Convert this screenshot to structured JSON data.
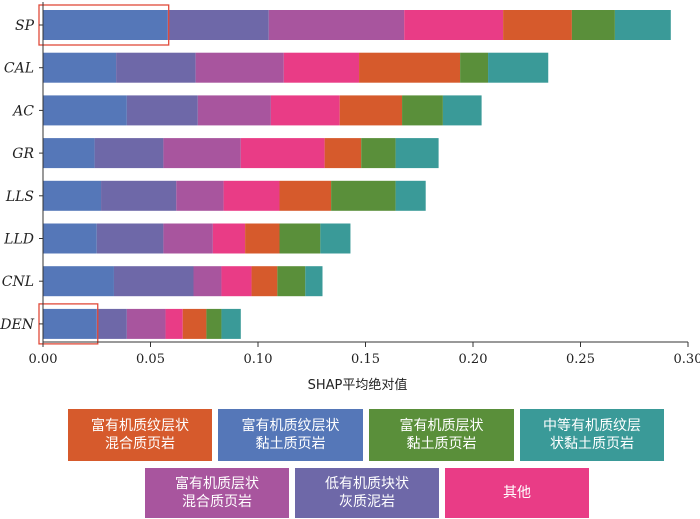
{
  "chart_data": {
    "type": "bar",
    "orientation": "horizontal",
    "stacked": true,
    "categories": [
      "SP",
      "CAL",
      "AC",
      "GR",
      "LLS",
      "LLD",
      "CNL",
      "DEN"
    ],
    "series": [
      {
        "name": "富有机质纹层状\n黏土质页岩",
        "color": "#5577b8",
        "values": [
          0.058,
          0.034,
          0.039,
          0.024,
          0.027,
          0.025,
          0.033,
          0.025
        ]
      },
      {
        "name": "低有机质块状\n灰质泥岩",
        "color": "#6e68a8",
        "values": [
          0.047,
          0.037,
          0.033,
          0.032,
          0.035,
          0.031,
          0.037,
          0.014
        ]
      },
      {
        "name": "富有机质层状\n混合质页岩",
        "color": "#a8559e",
        "values": [
          0.063,
          0.041,
          0.034,
          0.036,
          0.022,
          0.023,
          0.013,
          0.018
        ]
      },
      {
        "name": "其他",
        "color": "#e93c86",
        "values": [
          0.046,
          0.035,
          0.032,
          0.039,
          0.026,
          0.015,
          0.014,
          0.008
        ]
      },
      {
        "name": "富有机质纹层状\n混合质页岩",
        "color": "#d65a2c",
        "values": [
          0.032,
          0.047,
          0.029,
          0.017,
          0.024,
          0.016,
          0.012,
          0.011
        ]
      },
      {
        "name": "富有机质层状\n黏土质页岩",
        "color": "#5a8f3a",
        "values": [
          0.02,
          0.013,
          0.019,
          0.016,
          0.03,
          0.019,
          0.013,
          0.007
        ]
      },
      {
        "name": "中等有机质纹层\n状黏土质页岩",
        "color": "#3a9a98",
        "values": [
          0.026,
          0.028,
          0.018,
          0.02,
          0.014,
          0.014,
          0.008,
          0.009
        ]
      }
    ],
    "xlabel": "SHAP平均绝对值",
    "xlim": [
      0,
      0.3
    ],
    "xticks": [
      "0.00",
      "0.05",
      "0.10",
      "0.15",
      "0.20",
      "0.25",
      "0.30"
    ],
    "grid": false,
    "highlights": [
      "SP",
      "DEN"
    ],
    "highlight_color": "#e04a3a",
    "legend_placement": "bottom"
  }
}
